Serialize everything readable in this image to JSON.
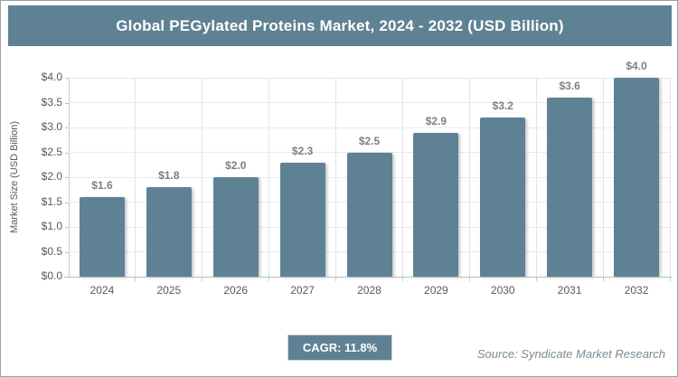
{
  "title_bar": {
    "text": "Global PEGylated Proteins Market, 2024 - 2032 (USD Billion)"
  },
  "chart_data": {
    "type": "bar",
    "title": "Global PEGylated Proteins Market, 2024 - 2032 (USD Billion)",
    "categories": [
      "2024",
      "2025",
      "2026",
      "2027",
      "2028",
      "2029",
      "2030",
      "2031",
      "2032"
    ],
    "values": [
      1.6,
      1.8,
      2.0,
      2.3,
      2.5,
      2.9,
      3.2,
      3.6,
      4.0
    ],
    "bar_labels": [
      "$1.6",
      "$1.8",
      "$2.0",
      "$2.3",
      "$2.5",
      "$2.9",
      "$3.2",
      "$3.6",
      "$4.0"
    ],
    "xlabel": "",
    "ylabel": "Market Size (USD Billion)",
    "ylim": [
      0,
      4.0
    ],
    "ytick_step": 0.5,
    "ytick_labels": [
      "$0.0",
      "$0.5",
      "$1.0",
      "$1.5",
      "$2.0",
      "$2.5",
      "$3.0",
      "$3.5",
      "$4.0"
    ],
    "grid": true,
    "legend": false,
    "bar_color": "#5e8294"
  },
  "footer": {
    "cagr_label": "CAGR: 11.8%",
    "source": "Source: Syndicate Market Research"
  },
  "colors": {
    "accent": "#5e8294",
    "title_text": "#ffffff",
    "data_label": "#7f7f7f",
    "axis_text": "#595959",
    "grid": "#e7ebed",
    "source_text": "#7b8b96"
  }
}
